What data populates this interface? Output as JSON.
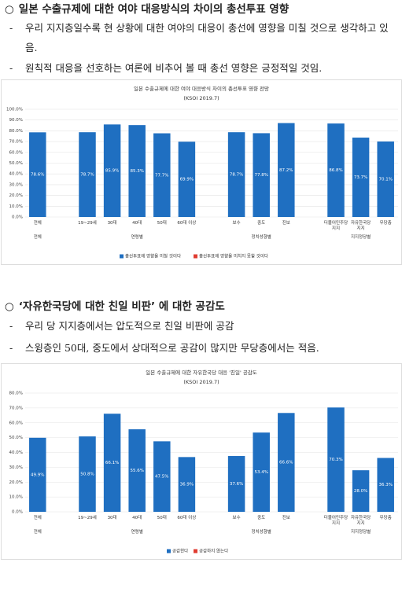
{
  "sections": [
    {
      "heading": "일본 수출규제에 대한 여야 대응방식의 차이의 총선투표 영향",
      "bullets": [
        "우리 지지층일수록 현 상황에 대한 여야의 대응이 총선에 영향을 미칠 것으로 생각하고 있음.",
        "원칙적 대응을 선호하는 여론에 비추어 볼 때 총선 영향은 긍정적일 것임."
      ]
    },
    {
      "heading": "‘자유한국당에 대한 친일 비판’ 에 대한 공감도",
      "bullets": [
        "우리 당 지지층에서는 압도적으로 친일 비판에 공감",
        "스윙층인 50대, 중도에서 상대적으로 공감이 많지만 무당층에서는 적음."
      ]
    }
  ],
  "chart_data": [
    {
      "type": "bar",
      "title": "일본 수출규제에 대한 여야 대응방식 차이의 총선투표 영향 전망",
      "subtitle": "(KSOI 2019.7)",
      "categories": [
        "전체",
        "19~29세",
        "30대",
        "40대",
        "50대",
        "60대 이상",
        "보수",
        "중도",
        "진보",
        "더불어민주당 지지",
        "자유한국당 지지",
        "무당층"
      ],
      "groups": [
        {
          "label": "전체",
          "count": 1
        },
        {
          "label": "연령별",
          "count": 5
        },
        {
          "label": "정치성향별",
          "count": 3
        },
        {
          "label": "지지정당별",
          "count": 3
        }
      ],
      "series": [
        {
          "name": "총선투표에 영향을 미칠 것이다",
          "color": "#1f6fc1",
          "values": [
            78.6,
            78.7,
            85.9,
            85.3,
            77.7,
            69.9,
            78.7,
            77.8,
            87.2,
            86.8,
            73.7,
            70.1
          ],
          "value_labels": [
            "78.6%",
            "78.7%",
            "85.9%",
            "85.3%",
            "77.7%",
            "69.9%",
            "78.7%",
            "77.8%",
            "87.2%",
            "86.8%",
            "73.7%",
            "70.1%"
          ]
        },
        {
          "name": "총선투표에 영향을 미치지 못할 것이다",
          "color": "#e03c31",
          "values": [
            null,
            null,
            null,
            null,
            null,
            null,
            null,
            null,
            null,
            null,
            null,
            null
          ]
        }
      ],
      "ylim": [
        0,
        100
      ],
      "yticks": [
        {
          "value": 0,
          "label": "0.0%"
        },
        {
          "value": 10,
          "label": "10.0%"
        },
        {
          "value": 20,
          "label": "20.0%"
        },
        {
          "value": 30,
          "label": "30.0%"
        },
        {
          "value": 40,
          "label": "40.0%"
        },
        {
          "value": 50,
          "label": "50.0%"
        },
        {
          "value": 60,
          "label": "60.0%"
        },
        {
          "value": 70,
          "label": "70.0%"
        },
        {
          "value": 80,
          "label": "80.0%"
        },
        {
          "value": 90,
          "label": "90.0%"
        },
        {
          "value": 100,
          "label": "100.0%"
        }
      ],
      "grid": true
    },
    {
      "type": "bar",
      "title": "일본 수출규제에 대한 자유한국당 대응 '친일' 공감도",
      "subtitle": "(KSOI 2019.7)",
      "categories": [
        "전체",
        "19~29세",
        "30대",
        "40대",
        "50대",
        "60대 이상",
        "보수",
        "중도",
        "진보",
        "더불어민주당 지지",
        "자유한국당 지지",
        "무당층"
      ],
      "groups": [
        {
          "label": "전체",
          "count": 1
        },
        {
          "label": "연령별",
          "count": 5
        },
        {
          "label": "정치성향별",
          "count": 3
        },
        {
          "label": "지지정당별",
          "count": 3
        }
      ],
      "series": [
        {
          "name": "공감한다",
          "color": "#1f6fc1",
          "values": [
            49.9,
            50.8,
            66.1,
            55.6,
            47.5,
            36.9,
            37.6,
            53.4,
            66.6,
            70.3,
            28.0,
            36.3
          ],
          "value_labels": [
            "49.9%",
            "50.8%",
            "66.1%",
            "55.6%",
            "47.5%",
            "36.9%",
            "37.6%",
            "53.4%",
            "66.6%",
            "70.3%",
            "28.0%",
            "36.3%"
          ]
        },
        {
          "name": "공감하지 않는다",
          "color": "#e03c31",
          "values": [
            null,
            null,
            null,
            null,
            null,
            null,
            null,
            null,
            null,
            null,
            null,
            null
          ]
        }
      ],
      "ylim": [
        0,
        80
      ],
      "yticks": [
        {
          "value": 0,
          "label": "0.0%"
        },
        {
          "value": 10,
          "label": "10.0%"
        },
        {
          "value": 20,
          "label": "20.0%"
        },
        {
          "value": 30,
          "label": "30.0%"
        },
        {
          "value": 40,
          "label": "40.0%"
        },
        {
          "value": 50,
          "label": "50.0%"
        },
        {
          "value": 60,
          "label": "60.0%"
        },
        {
          "value": 70,
          "label": "70.0%"
        },
        {
          "value": 80,
          "label": "80.0%"
        }
      ],
      "grid": true
    }
  ]
}
